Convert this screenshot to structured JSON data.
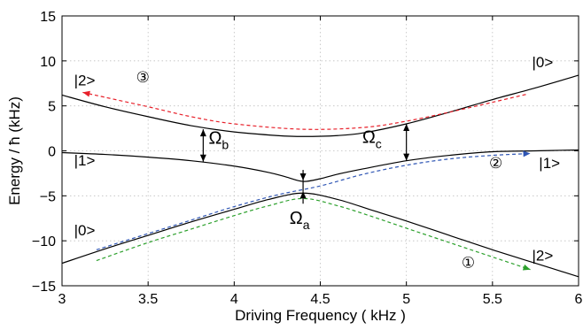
{
  "chart_data": {
    "type": "line",
    "title": "",
    "xlabel": "Driving Frequency ( kHz )",
    "ylabel": "Energy / ħ (kHz)",
    "xlim": [
      3,
      6
    ],
    "ylim": [
      -15,
      15
    ],
    "xticks": [
      "3",
      "3.5",
      "4",
      "4.5",
      "5",
      "5.5",
      "6"
    ],
    "yticks": [
      "15",
      "10",
      "5",
      "0",
      "−5",
      "−10",
      "−15"
    ],
    "grid": true,
    "series": [
      {
        "style": "solid",
        "color": "#000000",
        "x": [
          3.0,
          3.25,
          3.5,
          3.75,
          4.0,
          4.25,
          4.4,
          4.6,
          4.75,
          5.0,
          5.25,
          5.5,
          5.75,
          6.0
        ],
        "y": [
          6.2,
          4.9,
          3.8,
          2.8,
          2.1,
          1.7,
          1.6,
          1.7,
          2.0,
          3.0,
          4.3,
          5.7,
          7.0,
          8.4
        ]
      },
      {
        "style": "solid",
        "color": "#000000",
        "x": [
          3.0,
          3.25,
          3.5,
          3.75,
          4.0,
          4.2,
          4.3,
          4.4,
          4.5,
          4.6,
          4.75,
          5.0,
          5.25,
          5.5,
          5.75,
          6.0
        ],
        "y": [
          -0.2,
          -0.4,
          -0.7,
          -1.1,
          -1.7,
          -2.4,
          -2.9,
          -3.4,
          -3.1,
          -2.6,
          -2.0,
          -1.1,
          -0.5,
          -0.1,
          0.0,
          0.1
        ]
      },
      {
        "style": "solid",
        "color": "#000000",
        "x": [
          3.0,
          3.25,
          3.5,
          3.75,
          4.0,
          4.2,
          4.4,
          4.6,
          4.8,
          5.0,
          5.25,
          5.5,
          5.75,
          6.0
        ],
        "y": [
          -12.5,
          -10.9,
          -9.4,
          -7.9,
          -6.5,
          -5.4,
          -4.7,
          -5.4,
          -6.6,
          -7.8,
          -9.4,
          -11.0,
          -12.5,
          -14.0
        ]
      },
      {
        "style": "dashed",
        "color": "#e8202a",
        "arrow": "start",
        "x": [
          3.12,
          3.5,
          3.75,
          4.0,
          4.4,
          4.75,
          5.0,
          5.25,
          5.5,
          5.7
        ],
        "y": [
          6.5,
          4.9,
          3.8,
          3.0,
          2.4,
          2.6,
          3.3,
          4.3,
          5.4,
          6.3
        ]
      },
      {
        "style": "dashed",
        "color": "#2e55b4",
        "arrow": "end",
        "x": [
          3.2,
          3.5,
          3.75,
          4.0,
          4.25,
          4.5,
          4.75,
          5.0,
          5.25,
          5.5,
          5.72
        ],
        "y": [
          -11.0,
          -9.2,
          -7.7,
          -6.2,
          -4.9,
          -3.9,
          -2.6,
          -1.6,
          -0.9,
          -0.5,
          -0.3
        ]
      },
      {
        "style": "dashed",
        "color": "#2ca02c",
        "arrow": "end",
        "x": [
          3.2,
          3.5,
          3.75,
          4.0,
          4.2,
          4.4,
          4.6,
          4.8,
          5.0,
          5.25,
          5.5,
          5.72
        ],
        "y": [
          -12.2,
          -10.2,
          -8.7,
          -7.2,
          -6.1,
          -5.3,
          -6.1,
          -7.3,
          -8.6,
          -10.2,
          -11.8,
          -13.2
        ]
      }
    ],
    "annotations": [
      {
        "text": "|2>",
        "x": 3.07,
        "y": 7.3
      },
      {
        "text": "|0>",
        "x": 5.73,
        "y": 9.3
      },
      {
        "text": "|1>",
        "x": 3.07,
        "y": -1.6
      },
      {
        "text": "|1>",
        "x": 5.77,
        "y": -1.9
      },
      {
        "text": "|0>",
        "x": 3.07,
        "y": -9.4
      },
      {
        "text": "|2>",
        "x": 5.73,
        "y": -12.2
      },
      {
        "text": "③",
        "x": 3.43,
        "y": 7.6,
        "color": "#e8202a"
      },
      {
        "text": "②",
        "x": 5.48,
        "y": -1.9,
        "color": "#2e55b4"
      },
      {
        "text": "①",
        "x": 5.32,
        "y": -13.0,
        "color": "#2ca02c"
      }
    ],
    "gaps": [
      {
        "label": "Ω",
        "sub": "a",
        "x": 4.4,
        "y1": -3.3,
        "y2": -4.5,
        "label_x": 4.38,
        "label_y": -8.1
      },
      {
        "label": "Ω",
        "sub": "b",
        "x": 3.82,
        "y1": 2.4,
        "y2": -1.2,
        "label_x": 3.91,
        "label_y": 0.8
      },
      {
        "label": "Ω",
        "sub": "c",
        "x": 5.0,
        "y1": 3.0,
        "y2": -1.1,
        "label_x": 4.8,
        "label_y": 0.9
      }
    ]
  }
}
